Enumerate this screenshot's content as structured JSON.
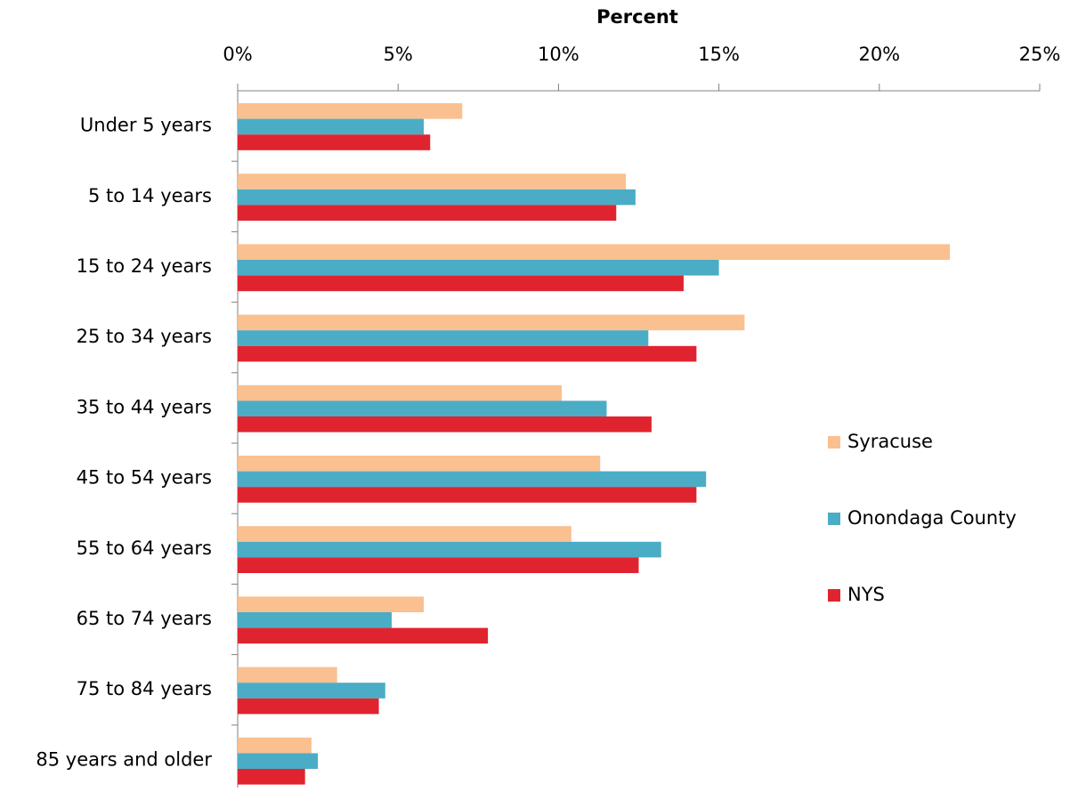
{
  "chart_data": {
    "type": "bar",
    "orientation": "horizontal",
    "x_label": "Percent",
    "categories": [
      "Under 5 years",
      "5 to 14 years",
      "15 to 24 years",
      "25 to 34 years",
      "35 to 44 years",
      "45 to 54 years",
      "55 to 64 years",
      "65 to 74 years",
      "75 to 84 years",
      "85 years and older"
    ],
    "series": [
      {
        "name": "Syracuse",
        "color": "#fac090",
        "values": [
          7.0,
          12.1,
          22.2,
          15.8,
          10.1,
          11.3,
          10.4,
          5.8,
          3.1,
          2.3
        ]
      },
      {
        "name": "Onondaga County",
        "color": "#4bacc6",
        "values": [
          5.8,
          12.4,
          15.0,
          12.8,
          11.5,
          14.6,
          13.2,
          4.8,
          4.6,
          2.5
        ]
      },
      {
        "name": "NYS",
        "color": "#e0242f",
        "values": [
          6.0,
          11.8,
          13.9,
          14.3,
          12.9,
          14.3,
          12.5,
          7.8,
          4.4,
          2.1
        ]
      }
    ],
    "xlim": [
      0,
      25
    ],
    "xticks": [
      {
        "value": 0,
        "label": "0%"
      },
      {
        "value": 5,
        "label": "5%"
      },
      {
        "value": 10,
        "label": "10%"
      },
      {
        "value": 15,
        "label": "15%"
      },
      {
        "value": 20,
        "label": "20%"
      },
      {
        "value": 25,
        "label": "25%"
      }
    ],
    "legend": "right"
  }
}
